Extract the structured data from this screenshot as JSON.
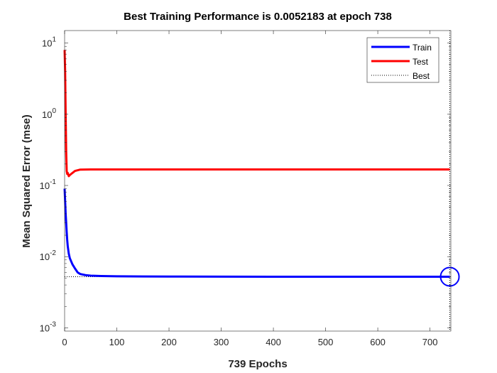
{
  "chart_data": {
    "type": "line",
    "title": "Best Training Performance is 0.0052183 at epoch 738",
    "xlabel": "739 Epochs",
    "ylabel": "Mean Squared Error  (mse)",
    "xlim": [
      0,
      740
    ],
    "ylim": [
      0.0009,
      15
    ],
    "yscale": "log",
    "x_ticks": [
      0,
      100,
      200,
      300,
      400,
      500,
      600,
      700
    ],
    "y_ticks": [
      {
        "value": 0.001,
        "base": "10",
        "exp": "-3"
      },
      {
        "value": 0.01,
        "base": "10",
        "exp": "-2"
      },
      {
        "value": 0.1,
        "base": "10",
        "exp": "-1"
      },
      {
        "value": 1,
        "base": "10",
        "exp": "0"
      },
      {
        "value": 10,
        "base": "10",
        "exp": "1"
      }
    ],
    "legend_position": "top-right",
    "grid": false,
    "series": [
      {
        "name": "Train",
        "color": "#0000ff",
        "x": [
          0,
          1,
          2,
          3,
          4,
          5,
          6,
          8,
          10,
          15,
          20,
          25,
          30,
          40,
          50,
          70,
          100,
          150,
          200,
          300,
          400,
          500,
          600,
          700,
          738
        ],
        "values": [
          0.09,
          0.06,
          0.04,
          0.03,
          0.022,
          0.017,
          0.014,
          0.011,
          0.0095,
          0.0078,
          0.0068,
          0.006,
          0.0057,
          0.0055,
          0.0054,
          0.00535,
          0.0053,
          0.00527,
          0.00525,
          0.00523,
          0.00522,
          0.005219,
          0.005219,
          0.0052185,
          0.0052183
        ]
      },
      {
        "name": "Test",
        "color": "#ff0000",
        "x": [
          0,
          1,
          2,
          3,
          4,
          5,
          6,
          8,
          10,
          15,
          20,
          30,
          50,
          100,
          200,
          400,
          600,
          738
        ],
        "values": [
          8,
          4,
          1,
          0.3,
          0.16,
          0.145,
          0.15,
          0.135,
          0.14,
          0.15,
          0.16,
          0.167,
          0.168,
          0.168,
          0.168,
          0.168,
          0.168,
          0.168
        ]
      }
    ],
    "best": {
      "label": "Best",
      "epoch": 738,
      "value": 0.0052183,
      "color": "#000000"
    }
  }
}
